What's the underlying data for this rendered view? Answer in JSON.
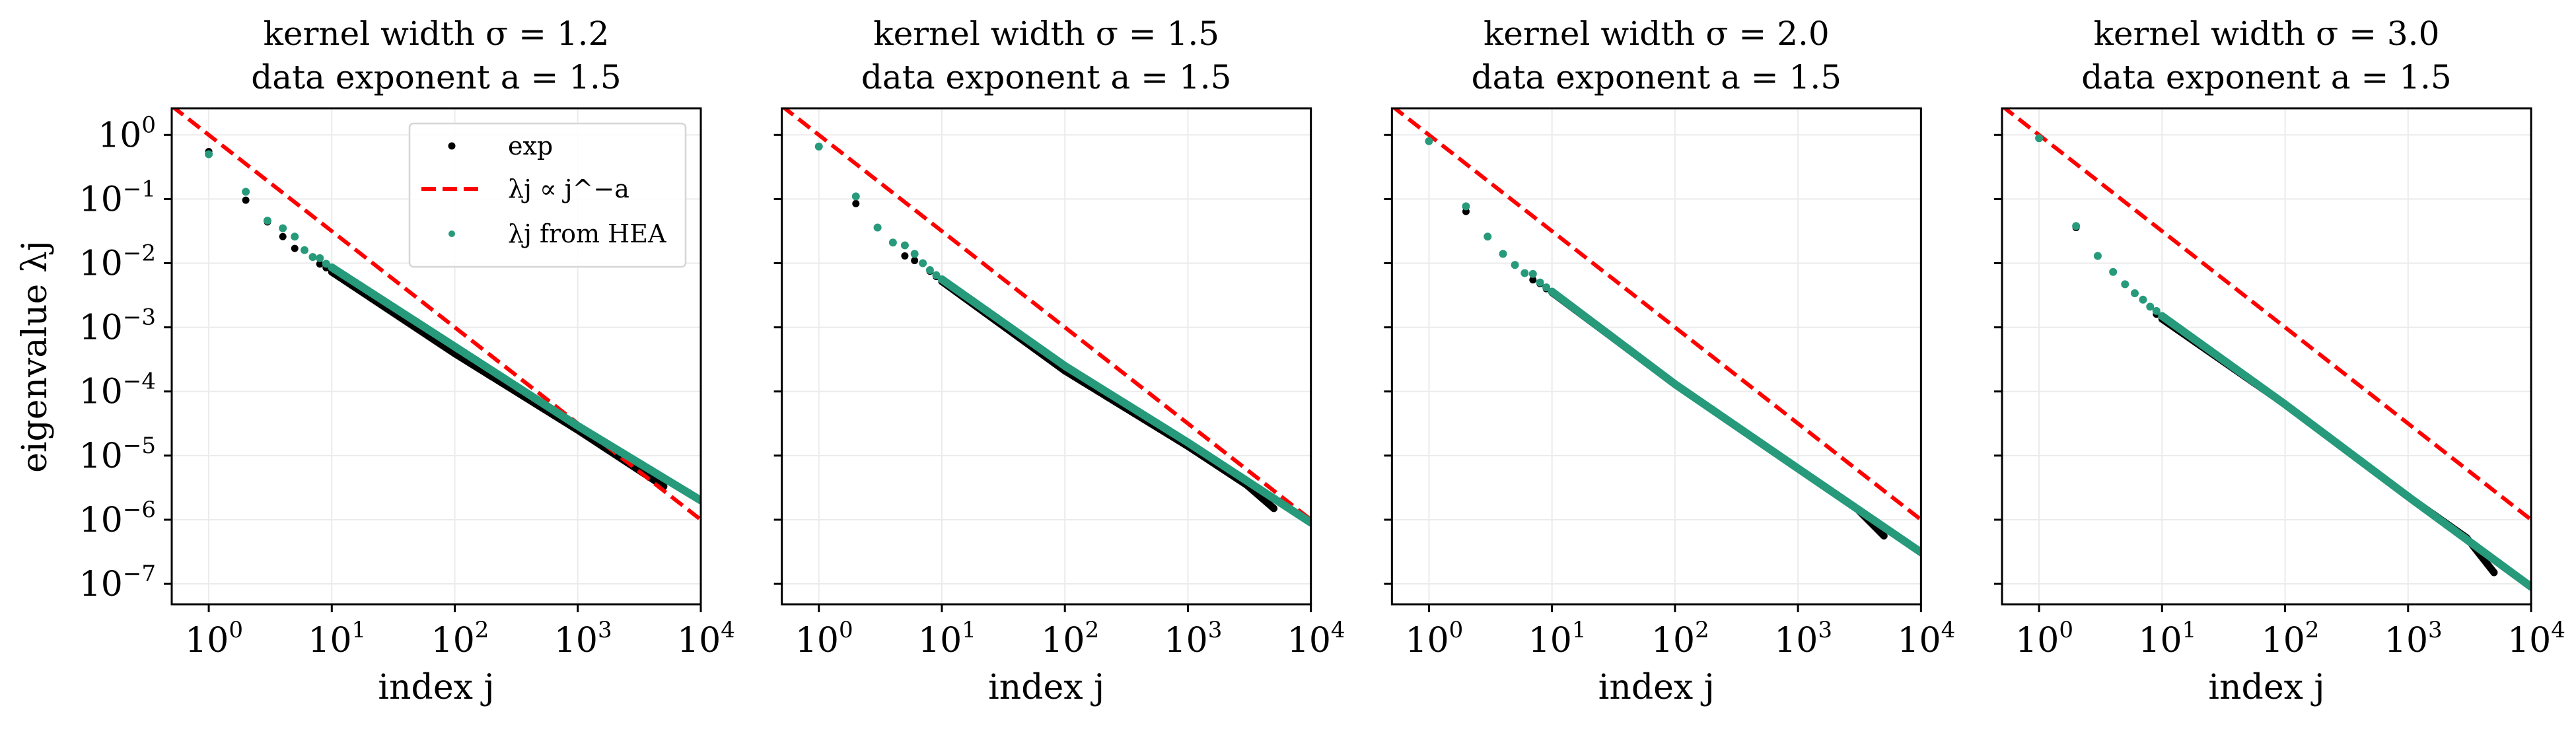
{
  "colors": {
    "exp": "#000000",
    "reference": "#ff0000",
    "hea": "#279a7b",
    "grid": "#ebebeb"
  },
  "legend": {
    "placement": "upper-right of first panel",
    "entries": [
      "exp",
      "λj ∝ j^−a",
      "λj from HEA"
    ]
  },
  "chart_data": [
    {
      "type": "scatter",
      "title": [
        "kernel width σ = 1.2",
        "data exponent a = 1.5"
      ],
      "xlabel": "index j",
      "ylabel": "eigenvalue λj",
      "xscale": "log",
      "yscale": "log",
      "xlim": [
        0.5,
        10000
      ],
      "ylim": [
        4.8e-08,
        2.6
      ],
      "x_ticks": [
        1,
        10,
        100,
        1000,
        10000
      ],
      "y_ticks": [
        1,
        0.1,
        0.01,
        0.001,
        0.0001,
        1e-05,
        1e-06,
        1e-07
      ],
      "grid": true,
      "series": [
        {
          "name": "exp",
          "points": [
            [
              1,
              0.55
            ],
            [
              2,
              0.096
            ],
            [
              3,
              0.044
            ],
            [
              4,
              0.026
            ],
            [
              5,
              0.017
            ],
            [
              6,
              0.016
            ],
            [
              7,
              0.0125
            ],
            [
              8,
              0.0097
            ],
            [
              9,
              0.0085
            ],
            [
              10,
              0.0073
            ],
            [
              100,
              0.00039
            ],
            [
              1000,
              2.5e-05
            ],
            [
              5000,
              3.3e-06
            ]
          ]
        },
        {
          "name": "λj from HEA",
          "points": [
            [
              1,
              0.5
            ],
            [
              2,
              0.13
            ],
            [
              3,
              0.046
            ],
            [
              4,
              0.035
            ],
            [
              5,
              0.026
            ],
            [
              6,
              0.016
            ],
            [
              7,
              0.0125
            ],
            [
              8,
              0.012
            ],
            [
              9,
              0.0098
            ],
            [
              10,
              0.0086
            ],
            [
              100,
              0.0005
            ],
            [
              1000,
              2.9e-05
            ],
            [
              10000,
              2e-06
            ]
          ]
        },
        {
          "name": "λj ∝ j^−a",
          "exponent": -1.5,
          "prefactor": 1
        }
      ]
    },
    {
      "type": "scatter",
      "title": [
        "kernel width σ = 1.5",
        "data exponent a = 1.5"
      ],
      "xlabel": "index j",
      "ylabel": "",
      "xscale": "log",
      "yscale": "log",
      "xlim": [
        0.5,
        10000
      ],
      "ylim": [
        4.8e-08,
        2.6
      ],
      "x_ticks": [
        1,
        10,
        100,
        1000,
        10000
      ],
      "y_ticks": [
        1,
        0.1,
        0.01,
        0.001,
        0.0001,
        1e-05,
        1e-06,
        1e-07
      ],
      "grid": true,
      "series": [
        {
          "name": "exp",
          "points": [
            [
              1,
              0.66
            ],
            [
              2,
              0.085
            ],
            [
              3,
              0.036
            ],
            [
              4,
              0.021
            ],
            [
              5,
              0.013
            ],
            [
              6,
              0.011
            ],
            [
              7,
              0.01
            ],
            [
              8,
              0.0075
            ],
            [
              9,
              0.0062
            ],
            [
              10,
              0.0052
            ],
            [
              100,
              0.00021
            ],
            [
              1000,
              1.4e-05
            ],
            [
              3000,
              3.5e-06
            ],
            [
              5000,
              1.5e-06
            ]
          ]
        },
        {
          "name": "λj from HEA",
          "points": [
            [
              1,
              0.66
            ],
            [
              2,
              0.11
            ],
            [
              3,
              0.036
            ],
            [
              4,
              0.021
            ],
            [
              5,
              0.019
            ],
            [
              6,
              0.014
            ],
            [
              7,
              0.01
            ],
            [
              8,
              0.0078
            ],
            [
              9,
              0.0065
            ],
            [
              10,
              0.0056
            ],
            [
              100,
              0.00025
            ],
            [
              1000,
              1.6e-05
            ],
            [
              10000,
              9e-07
            ]
          ]
        },
        {
          "name": "λj ∝ j^−a",
          "exponent": -1.5,
          "prefactor": 1
        }
      ]
    },
    {
      "type": "scatter",
      "title": [
        "kernel width σ = 2.0",
        "data exponent a = 1.5"
      ],
      "xlabel": "index j",
      "ylabel": "",
      "xscale": "log",
      "yscale": "log",
      "xlim": [
        0.5,
        10000
      ],
      "ylim": [
        4.8e-08,
        2.6
      ],
      "x_ticks": [
        1,
        10,
        100,
        1000,
        10000
      ],
      "y_ticks": [
        1,
        0.1,
        0.01,
        0.001,
        0.0001,
        1e-05,
        1e-06,
        1e-07
      ],
      "grid": true,
      "series": [
        {
          "name": "exp",
          "points": [
            [
              1,
              0.8
            ],
            [
              2,
              0.064
            ],
            [
              3,
              0.026
            ],
            [
              4,
              0.014
            ],
            [
              5,
              0.0094
            ],
            [
              6,
              0.007
            ],
            [
              7,
              0.0055
            ],
            [
              8,
              0.0048
            ],
            [
              9,
              0.004
            ],
            [
              10,
              0.0035
            ],
            [
              100,
              0.00013
            ],
            [
              1000,
              6.3e-06
            ],
            [
              3000,
              1.5e-06
            ],
            [
              5000,
              5.6e-07
            ]
          ]
        },
        {
          "name": "λj from HEA",
          "points": [
            [
              1,
              0.8
            ],
            [
              2,
              0.077
            ],
            [
              3,
              0.026
            ],
            [
              4,
              0.014
            ],
            [
              5,
              0.0094
            ],
            [
              6,
              0.007
            ],
            [
              7,
              0.0068
            ],
            [
              8,
              0.005
            ],
            [
              9,
              0.0042
            ],
            [
              10,
              0.0036
            ],
            [
              100,
              0.00013
            ],
            [
              1000,
              6.3e-06
            ],
            [
              10000,
              3.1e-07
            ]
          ]
        },
        {
          "name": "λj ∝ j^−a",
          "exponent": -1.5,
          "prefactor": 1
        }
      ]
    },
    {
      "type": "scatter",
      "title": [
        "kernel width σ = 3.0",
        "data exponent a = 1.5"
      ],
      "xlabel": "index j",
      "ylabel": "",
      "xscale": "log",
      "yscale": "log",
      "xlim": [
        0.5,
        10000
      ],
      "ylim": [
        4.8e-08,
        2.6
      ],
      "x_ticks": [
        1,
        10,
        100,
        1000,
        10000
      ],
      "y_ticks": [
        1,
        0.1,
        0.01,
        0.001,
        0.0001,
        1e-05,
        1e-06,
        1e-07
      ],
      "grid": true,
      "series": [
        {
          "name": "exp",
          "points": [
            [
              1,
              0.89
            ],
            [
              2,
              0.036
            ],
            [
              3,
              0.013
            ],
            [
              4,
              0.0073
            ],
            [
              5,
              0.0047
            ],
            [
              6,
              0.0034
            ],
            [
              7,
              0.0027
            ],
            [
              8,
              0.0021
            ],
            [
              9,
              0.0016
            ],
            [
              10,
              0.00135
            ],
            [
              100,
              6.3e-05
            ],
            [
              1000,
              2.3e-06
            ],
            [
              3000,
              5.2e-07
            ],
            [
              5000,
              1.5e-07
            ]
          ]
        },
        {
          "name": "λj from HEA",
          "points": [
            [
              1,
              0.89
            ],
            [
              2,
              0.038
            ],
            [
              3,
              0.013
            ],
            [
              4,
              0.0073
            ],
            [
              5,
              0.0047
            ],
            [
              6,
              0.0034
            ],
            [
              7,
              0.0027
            ],
            [
              8,
              0.0021
            ],
            [
              9,
              0.0018
            ],
            [
              10,
              0.0015
            ],
            [
              100,
              6.3e-05
            ],
            [
              1000,
              2.3e-06
            ],
            [
              10000,
              9e-08
            ]
          ]
        },
        {
          "name": "λj ∝ j^−a",
          "exponent": -1.5,
          "prefactor": 1
        }
      ]
    }
  ]
}
